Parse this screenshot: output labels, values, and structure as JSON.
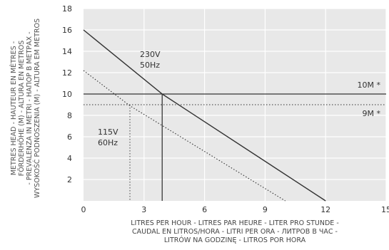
{
  "chart_data": {
    "type": "line",
    "title": "",
    "xlim": [
      0,
      15
    ],
    "ylim": [
      0,
      18
    ],
    "x_ticks": [
      0,
      3,
      6,
      9,
      12,
      15
    ],
    "y_ticks": [
      2,
      4,
      6,
      8,
      10,
      12,
      14,
      16,
      18
    ],
    "x_tick_labels": [
      "0",
      "3",
      "6",
      "9",
      "12",
      "15"
    ],
    "y_tick_labels": [
      "2",
      "4",
      "6",
      "8",
      "10",
      "12",
      "14",
      "16",
      "18"
    ],
    "xlabel_lines": [
      "LITRES PER HOUR - LITRES PAR HEURE - LITER PRO STUNDE -",
      "CAUDAL EN LITROS/HORA - LITRI PER ORA - ЛИТРОВ В ЧАС -",
      "LITRÓW NA GODZINĘ - LITROS POR HORA"
    ],
    "ylabel_lines": [
      "METRES HEAD - HAUTEUR EN MÈTRES -",
      "FÖRDERHÖHE (M) - ALTURA EN METROS",
      "- PREVALENZA IN METRI - НАПОР В МЕТРАХ -",
      "WYSOKOŚĆ PODNOSZENIA (M) - ALTURA EM METROS"
    ],
    "series": [
      {
        "name": "230V 50Hz",
        "label_lines": [
          "230V",
          "50Hz"
        ],
        "style": "solid",
        "x": [
          0,
          3.9,
          12
        ],
        "y": [
          16,
          10,
          0
        ]
      },
      {
        "name": "115V 60Hz",
        "label_lines": [
          "115V",
          "60Hz"
        ],
        "style": "dotted",
        "x": [
          0,
          2.3,
          10
        ],
        "y": [
          12.2,
          8.9,
          0
        ]
      }
    ],
    "reference_lines": [
      {
        "label": "10M *",
        "y": 10,
        "style": "solid"
      },
      {
        "label": "9M *",
        "y": 9,
        "style": "dotted"
      }
    ],
    "drop_lines": [
      {
        "x": 3.9,
        "y": 10,
        "style": "solid"
      },
      {
        "x": 2.3,
        "y": 9,
        "style": "dotted"
      }
    ],
    "grid": true,
    "background": "#e8e8e8",
    "grid_color": "#ffffff"
  }
}
